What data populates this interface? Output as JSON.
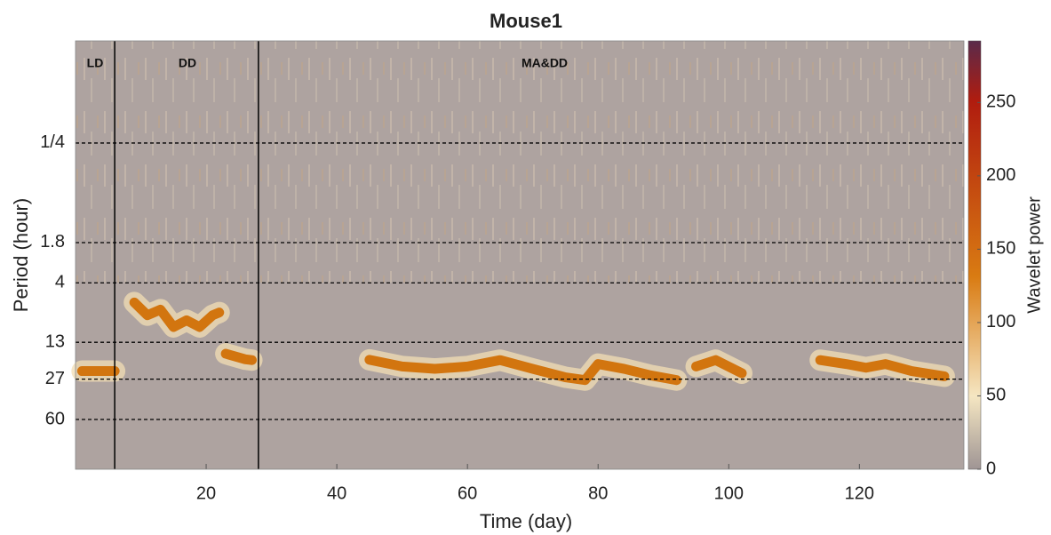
{
  "chart_data": {
    "type": "spectrogram",
    "title": "Mouse1",
    "x_label": "Time (day)",
    "y_label": "Period (hour)",
    "colorbar_label": "Wavelet power",
    "xlim": [
      0,
      136
    ],
    "xticks": [
      20,
      40,
      60,
      80,
      100,
      120
    ],
    "ylim": [
      0.033,
      161
    ],
    "y_log": true,
    "y_reversed": true,
    "yticks": [
      {
        "value": 0.25,
        "label": "1/4"
      },
      1.8,
      4,
      13,
      27,
      60
    ],
    "grid": true,
    "clim": [
      0,
      292
    ],
    "cticks": [
      0,
      50,
      100,
      150,
      200,
      250
    ],
    "phase_boundaries": [
      6,
      28
    ],
    "annotations": [
      "LD",
      "DD",
      "MA&DD"
    ],
    "ridge": {
      "color": "#d2750f",
      "x": [
        1,
        3,
        5,
        6,
        null,
        9,
        11,
        13,
        15,
        17,
        19,
        21,
        22,
        null,
        23,
        26,
        27,
        null,
        45,
        50,
        55,
        60,
        65,
        70,
        75,
        78,
        80,
        84,
        88,
        92,
        null,
        95,
        98,
        102,
        null,
        114,
        118,
        121,
        124,
        128,
        133
      ],
      "values": [
        23,
        23,
        23,
        23,
        null,
        5.9,
        7.6,
        6.8,
        9.6,
        8.4,
        9.6,
        7.6,
        7.2,
        null,
        16.3,
        18.2,
        18.5,
        null,
        18.4,
        21,
        22,
        21,
        18.5,
        22,
        26,
        27.5,
        20,
        22,
        25,
        27.5,
        null,
        21,
        18.5,
        24,
        null,
        18.5,
        20,
        21.5,
        20,
        23,
        25.5
      ]
    }
  }
}
